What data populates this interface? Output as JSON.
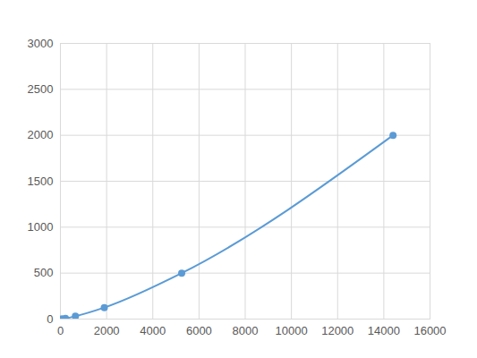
{
  "chart_data": {
    "type": "line",
    "x": [
      60,
      220,
      650,
      1900,
      5250,
      14400
    ],
    "values": [
      2,
      8,
      31,
      125,
      500,
      2000
    ],
    "color": "#5b9bd5",
    "marker": "circle",
    "line_style": "solid",
    "xlim": [
      0,
      16000
    ],
    "xticks": [
      0,
      2000,
      4000,
      6000,
      8000,
      10000,
      12000,
      14000,
      16000
    ],
    "ylim": [
      0,
      3000
    ],
    "yticks": [
      0,
      500,
      1000,
      1500,
      2000,
      2500,
      3000
    ],
    "grid": true
  }
}
